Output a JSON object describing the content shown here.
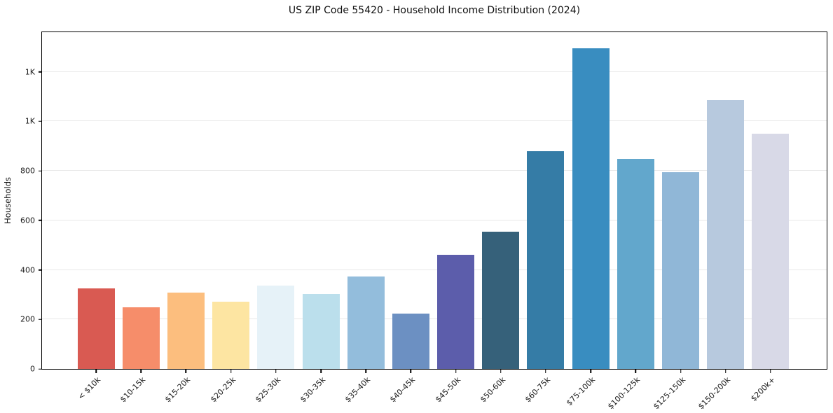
{
  "chart_data": {
    "type": "bar",
    "title": "US ZIP Code 55420 - Household Income Distribution (2024)",
    "ylabel": "Households",
    "xlabel": "",
    "categories": [
      "< $10k",
      "$10-15k",
      "$15-20k",
      "$20-25k",
      "$25-30k",
      "$30-35k",
      "$35-40k",
      "$40-45k",
      "$45-50k",
      "$50-60k",
      "$60-75k",
      "$75-100k",
      "$100-125k",
      "$125-150k",
      "$150-200k",
      "$200k+"
    ],
    "values": [
      325,
      250,
      308,
      271,
      337,
      303,
      373,
      224,
      462,
      553,
      878,
      1295,
      848,
      795,
      1085,
      950
    ],
    "colors": [
      "#d95a52",
      "#f68d6a",
      "#fcbe7e",
      "#fde5a2",
      "#e6f2f8",
      "#bbdfec",
      "#93bddc",
      "#6c90c2",
      "#5c5dab",
      "#36617a",
      "#357ca6",
      "#398dc0",
      "#62a7cc",
      "#90b7d7",
      "#b7c9de",
      "#d8d9e7"
    ],
    "ylim": [
      0,
      1360
    ],
    "yticks": [
      {
        "value": 0,
        "label": "0"
      },
      {
        "value": 200,
        "label": "200"
      },
      {
        "value": 400,
        "label": "400"
      },
      {
        "value": 600,
        "label": "600"
      },
      {
        "value": 800,
        "label": "800"
      },
      {
        "value": 1000,
        "label": "1K"
      },
      {
        "value": 1200,
        "label": "1K"
      }
    ],
    "grid": "horizontal",
    "legend": "none",
    "bar_edge_color": "none",
    "frame_color": "#000000",
    "gridline_color": "#e9e9e9"
  }
}
